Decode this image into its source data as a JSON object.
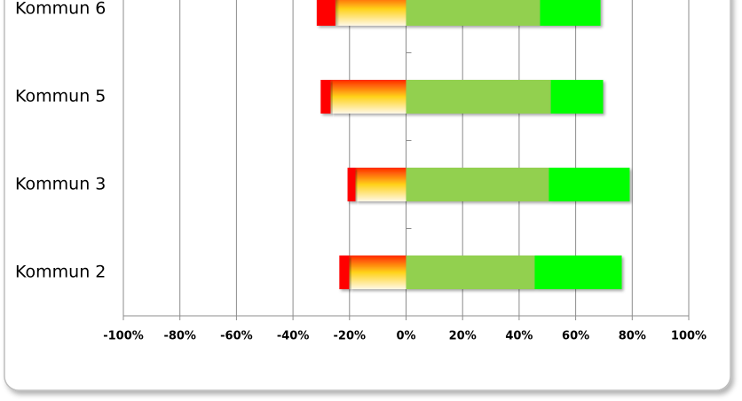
{
  "chart_data": {
    "type": "diverging-bar",
    "categories": [
      "Kommun 6",
      "Kommun 5",
      "Kommun 3",
      "Kommun 2"
    ],
    "series": [
      {
        "color": "#ffd21a",
        "values": [
          -25,
          -26.7,
          -17.9,
          -20.1
        ]
      },
      {
        "color": "#ff0000",
        "values": [
          -6.6,
          -3.5,
          -2.8,
          -3.5
        ]
      },
      {
        "color": "#92d050",
        "values": [
          47.4,
          51.2,
          50.5,
          45.5
        ]
      },
      {
        "color": "#00ff00",
        "values": [
          21.4,
          18.5,
          28.6,
          30.8
        ]
      }
    ],
    "xlim": [
      -100,
      100
    ],
    "xticks": [
      {
        "value": -100,
        "label": "-100%"
      },
      {
        "value": -80,
        "label": "-80%"
      },
      {
        "value": -60,
        "label": "-60%"
      },
      {
        "value": -40,
        "label": "-40%"
      },
      {
        "value": -20,
        "label": "-20%"
      },
      {
        "value": 0,
        "label": "0%"
      },
      {
        "value": 20,
        "label": "20%"
      },
      {
        "value": 40,
        "label": "40%"
      },
      {
        "value": 60,
        "label": "60%"
      },
      {
        "value": 80,
        "label": "80%"
      },
      {
        "value": 100,
        "label": "100%"
      }
    ],
    "grid": true
  }
}
